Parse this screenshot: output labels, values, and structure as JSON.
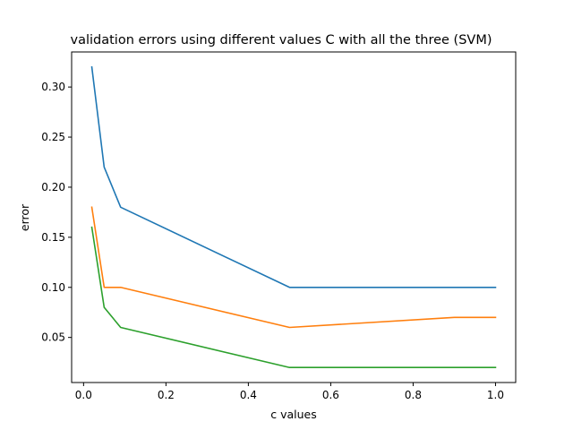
{
  "chart_data": {
    "type": "line",
    "title": "validation errors using different values C with all the three (SVM)",
    "xlabel": "c values",
    "ylabel": "error",
    "xlim": [
      -0.029,
      1.049
    ],
    "ylim": [
      0.005,
      0.335
    ],
    "xticks": [
      0.0,
      0.2,
      0.4,
      0.6,
      0.8,
      1.0
    ],
    "xtick_labels": [
      "0.0",
      "0.2",
      "0.4",
      "0.6",
      "0.8",
      "1.0"
    ],
    "yticks": [
      0.05,
      0.1,
      0.15,
      0.2,
      0.25,
      0.3
    ],
    "ytick_labels": [
      "0.05",
      "0.10",
      "0.15",
      "0.20",
      "0.25",
      "0.30"
    ],
    "grid": false,
    "legend": "none",
    "series": [
      {
        "color": "#1f77b4",
        "x": [
          0.02,
          0.05,
          0.09,
          0.5,
          0.9,
          1.0
        ],
        "y": [
          0.32,
          0.22,
          0.18,
          0.1,
          0.1,
          0.1
        ]
      },
      {
        "color": "#ff7f0e",
        "x": [
          0.02,
          0.05,
          0.09,
          0.5,
          0.9,
          1.0
        ],
        "y": [
          0.18,
          0.1,
          0.1,
          0.06,
          0.07,
          0.07
        ]
      },
      {
        "color": "#2ca02c",
        "x": [
          0.02,
          0.05,
          0.09,
          0.5,
          0.9,
          1.0
        ],
        "y": [
          0.16,
          0.08,
          0.06,
          0.02,
          0.02,
          0.02
        ]
      }
    ]
  }
}
